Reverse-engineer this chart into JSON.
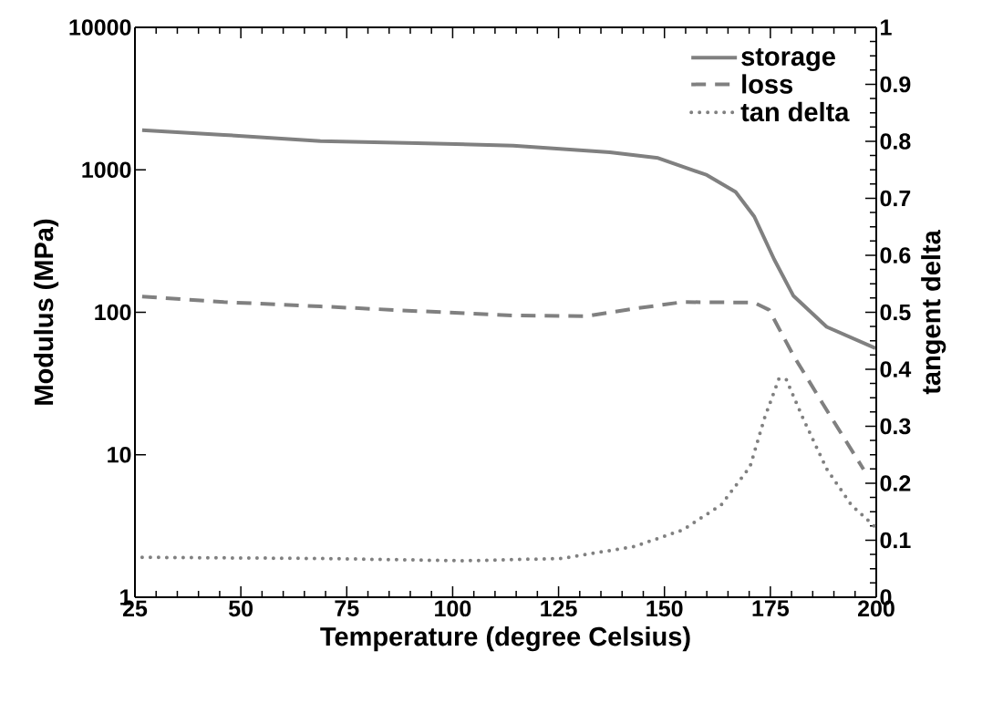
{
  "chart_data": {
    "type": "line",
    "xlabel": "Temperature (degree Celsius)",
    "ylabel": "Modulus (MPa)",
    "y2label": "tangent delta",
    "log": "y",
    "legend": "top right",
    "grid": false,
    "xlim": [
      25,
      200
    ],
    "xticks": [
      25,
      50,
      75,
      100,
      125,
      150,
      175,
      200
    ],
    "ylim": [
      1,
      10000
    ],
    "yticks": [
      1,
      10,
      100,
      1000,
      10000
    ],
    "y2lim": [
      0,
      1
    ],
    "y2ticks": [
      0,
      0.1,
      0.2,
      0.3,
      0.4,
      0.5,
      0.6,
      0.7,
      0.8,
      0.9,
      1
    ],
    "series": [
      {
        "name": "storage",
        "color": "#808080",
        "line_style": "solid",
        "x": [
          26.7,
          46,
          68.8,
          91.6,
          114.3,
          137.1,
          148.5,
          160,
          166.8,
          171.2,
          175.9,
          180.4,
          188.3,
          199.8
        ],
        "values": [
          1900,
          1760,
          1590,
          1540,
          1480,
          1330,
          1210,
          920,
          700,
          470,
          235,
          131,
          79,
          56
        ]
      },
      {
        "name": "loss",
        "color": "#808080",
        "line_style": "dashed",
        "x": [
          26.7,
          46,
          68.8,
          91.6,
          114.3,
          131.5,
          142.8,
          154.3,
          171.2,
          174.7,
          180.4,
          187.3,
          197
        ],
        "values": [
          129,
          118,
          110,
          102,
          95,
          94,
          106,
          118,
          117,
          104,
          50,
          23,
          7.9
        ]
      },
      {
        "name": "tan delta",
        "color": "#808080",
        "line_style": "dotted",
        "axis": "y2",
        "x": [
          26.7,
          68.8,
          102.9,
          125.7,
          142.9,
          154.3,
          163.4,
          170.2,
          173.6,
          177,
          178.7,
          182.7,
          188.3,
          194.1,
          199.8
        ],
        "values": [
          0.07,
          0.068,
          0.064,
          0.068,
          0.089,
          0.118,
          0.162,
          0.229,
          0.314,
          0.383,
          0.383,
          0.314,
          0.225,
          0.162,
          0.123
        ]
      }
    ]
  }
}
